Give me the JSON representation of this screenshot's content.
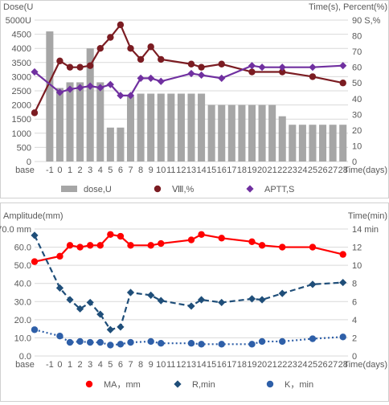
{
  "chart_data": [
    {
      "type": "bar",
      "left_axis_label": "Dose(U",
      "right_axis_label": "Time(s), Percent(%)",
      "x_axis_label": "Time(days)",
      "categories": [
        "base",
        "-1",
        "0",
        "1",
        "2",
        "3",
        "4",
        "5",
        "6",
        "7",
        "8",
        "9",
        "10",
        "11",
        "12",
        "13",
        "14",
        "15",
        "16",
        "17",
        "18",
        "19",
        "20",
        "21",
        "22",
        "23",
        "24",
        "25",
        "26",
        "27",
        "28"
      ],
      "left_ticks": [
        "0",
        "500",
        "1000",
        "1500",
        "2000",
        "2500",
        "3000",
        "3500",
        "4000",
        "4500",
        "5000U"
      ],
      "right_ticks": [
        "0",
        "10",
        "20",
        "30",
        "40",
        "50",
        "60",
        "70",
        "80",
        "90 S,%"
      ],
      "ylim_left": [
        0,
        5000
      ],
      "ylim_right": [
        0,
        90
      ],
      "series": [
        {
          "name": "dose,U",
          "kind": "bar",
          "axis": "left",
          "color": "#a6a6a6",
          "x": [
            "-1",
            "0",
            "1",
            "2",
            "3",
            "4",
            "5",
            "6",
            "7",
            "8",
            "9",
            "10",
            "11",
            "12",
            "13",
            "14",
            "15",
            "16",
            "17",
            "18",
            "19",
            "20",
            "21",
            "22",
            "23",
            "24",
            "25",
            "26",
            "27",
            "28"
          ],
          "values": [
            4600,
            2600,
            2800,
            2800,
            4000,
            2800,
            1200,
            1200,
            2300,
            2400,
            2400,
            2400,
            2400,
            2400,
            2400,
            2400,
            2000,
            2000,
            2000,
            2000,
            2000,
            2000,
            2000,
            1600,
            1300,
            1300,
            1300,
            1300,
            1300,
            1300
          ]
        },
        {
          "name": "Ⅷ,%",
          "kind": "line",
          "axis": "right",
          "color": "#7b1c22",
          "marker": "circle",
          "x": [
            "base",
            "0",
            "1",
            "2",
            "3",
            "4",
            "5",
            "6",
            "7",
            "8",
            "9",
            "10",
            "13",
            "14",
            "16",
            "19",
            "22",
            "25",
            "28"
          ],
          "values": [
            31,
            64,
            60,
            60,
            61,
            72,
            79,
            87,
            72,
            65,
            73,
            65,
            62,
            60,
            62,
            57,
            57,
            54,
            50
          ]
        },
        {
          "name": "APTT,S",
          "kind": "line",
          "axis": "right",
          "color": "#7030a0",
          "marker": "diamond",
          "x": [
            "base",
            "0",
            "1",
            "2",
            "3",
            "4",
            "5",
            "6",
            "7",
            "8",
            "9",
            "10",
            "13",
            "14",
            "16",
            "19",
            "20",
            "22",
            "25",
            "28"
          ],
          "values": [
            57,
            44,
            46,
            47,
            48,
            47,
            49,
            42,
            42,
            53,
            53,
            51,
            56,
            55,
            53,
            61,
            60,
            60,
            60,
            61
          ]
        }
      ]
    },
    {
      "type": "line",
      "left_axis_label": "Amplitude(mm)",
      "right_axis_label": "Time(min)",
      "x_axis_label": "Time(days)",
      "categories": [
        "base",
        "-1",
        "0",
        "1",
        "2",
        "3",
        "4",
        "5",
        "6",
        "7",
        "8",
        "9",
        "10",
        "11",
        "12",
        "13",
        "14",
        "15",
        "16",
        "17",
        "18",
        "19",
        "20",
        "21",
        "22",
        "23",
        "24",
        "25",
        "26",
        "27",
        "28"
      ],
      "left_ticks": [
        "0.0",
        "10.0",
        "20.0",
        "30.0",
        "40.0",
        "50.0",
        "60.0",
        "70.0 mm"
      ],
      "right_ticks": [
        "0",
        "2",
        "4",
        "6",
        "8",
        "10",
        "12",
        "14 min"
      ],
      "ylim_left": [
        0,
        70
      ],
      "ylim_right": [
        0,
        14
      ],
      "series": [
        {
          "name": "MA，mm",
          "kind": "line",
          "axis": "left",
          "color": "#ff0000",
          "marker": "circle",
          "dash": "solid",
          "x": [
            "base",
            "0",
            "1",
            "2",
            "3",
            "4",
            "5",
            "6",
            "7",
            "9",
            "10",
            "13",
            "14",
            "16",
            "19",
            "20",
            "22",
            "25",
            "28"
          ],
          "values": [
            52,
            55,
            61,
            60,
            61,
            61,
            67,
            66,
            61,
            61,
            62,
            64,
            67,
            65,
            63,
            61,
            60,
            60,
            56
          ]
        },
        {
          "name": "R,min",
          "kind": "line",
          "axis": "right",
          "color": "#1f4e79",
          "marker": "diamond",
          "dash": "dashed",
          "x": [
            "base",
            "0",
            "1",
            "2",
            "3",
            "4",
            "5",
            "6",
            "7",
            "9",
            "10",
            "13",
            "14",
            "16",
            "19",
            "20",
            "22",
            "25",
            "28"
          ],
          "values": [
            13.3,
            7.5,
            6.2,
            5.2,
            5.9,
            4.6,
            2.9,
            3.2,
            7.0,
            6.7,
            6.1,
            5.5,
            6.2,
            5.9,
            6.3,
            6.2,
            6.9,
            7.9,
            8.1
          ]
        },
        {
          "name": "K，min",
          "kind": "line",
          "axis": "right",
          "color": "#2e5fa8",
          "marker": "circle",
          "dash": "dotted",
          "x": [
            "base",
            "0",
            "1",
            "2",
            "3",
            "4",
            "5",
            "6",
            "7",
            "9",
            "10",
            "13",
            "14",
            "16",
            "19",
            "20",
            "22",
            "25",
            "28"
          ],
          "values": [
            2.9,
            2.2,
            1.5,
            1.6,
            1.5,
            1.5,
            1.2,
            1.3,
            1.5,
            1.6,
            1.4,
            1.4,
            1.3,
            1.3,
            1.3,
            1.6,
            1.6,
            1.9,
            2.1
          ]
        }
      ]
    }
  ]
}
